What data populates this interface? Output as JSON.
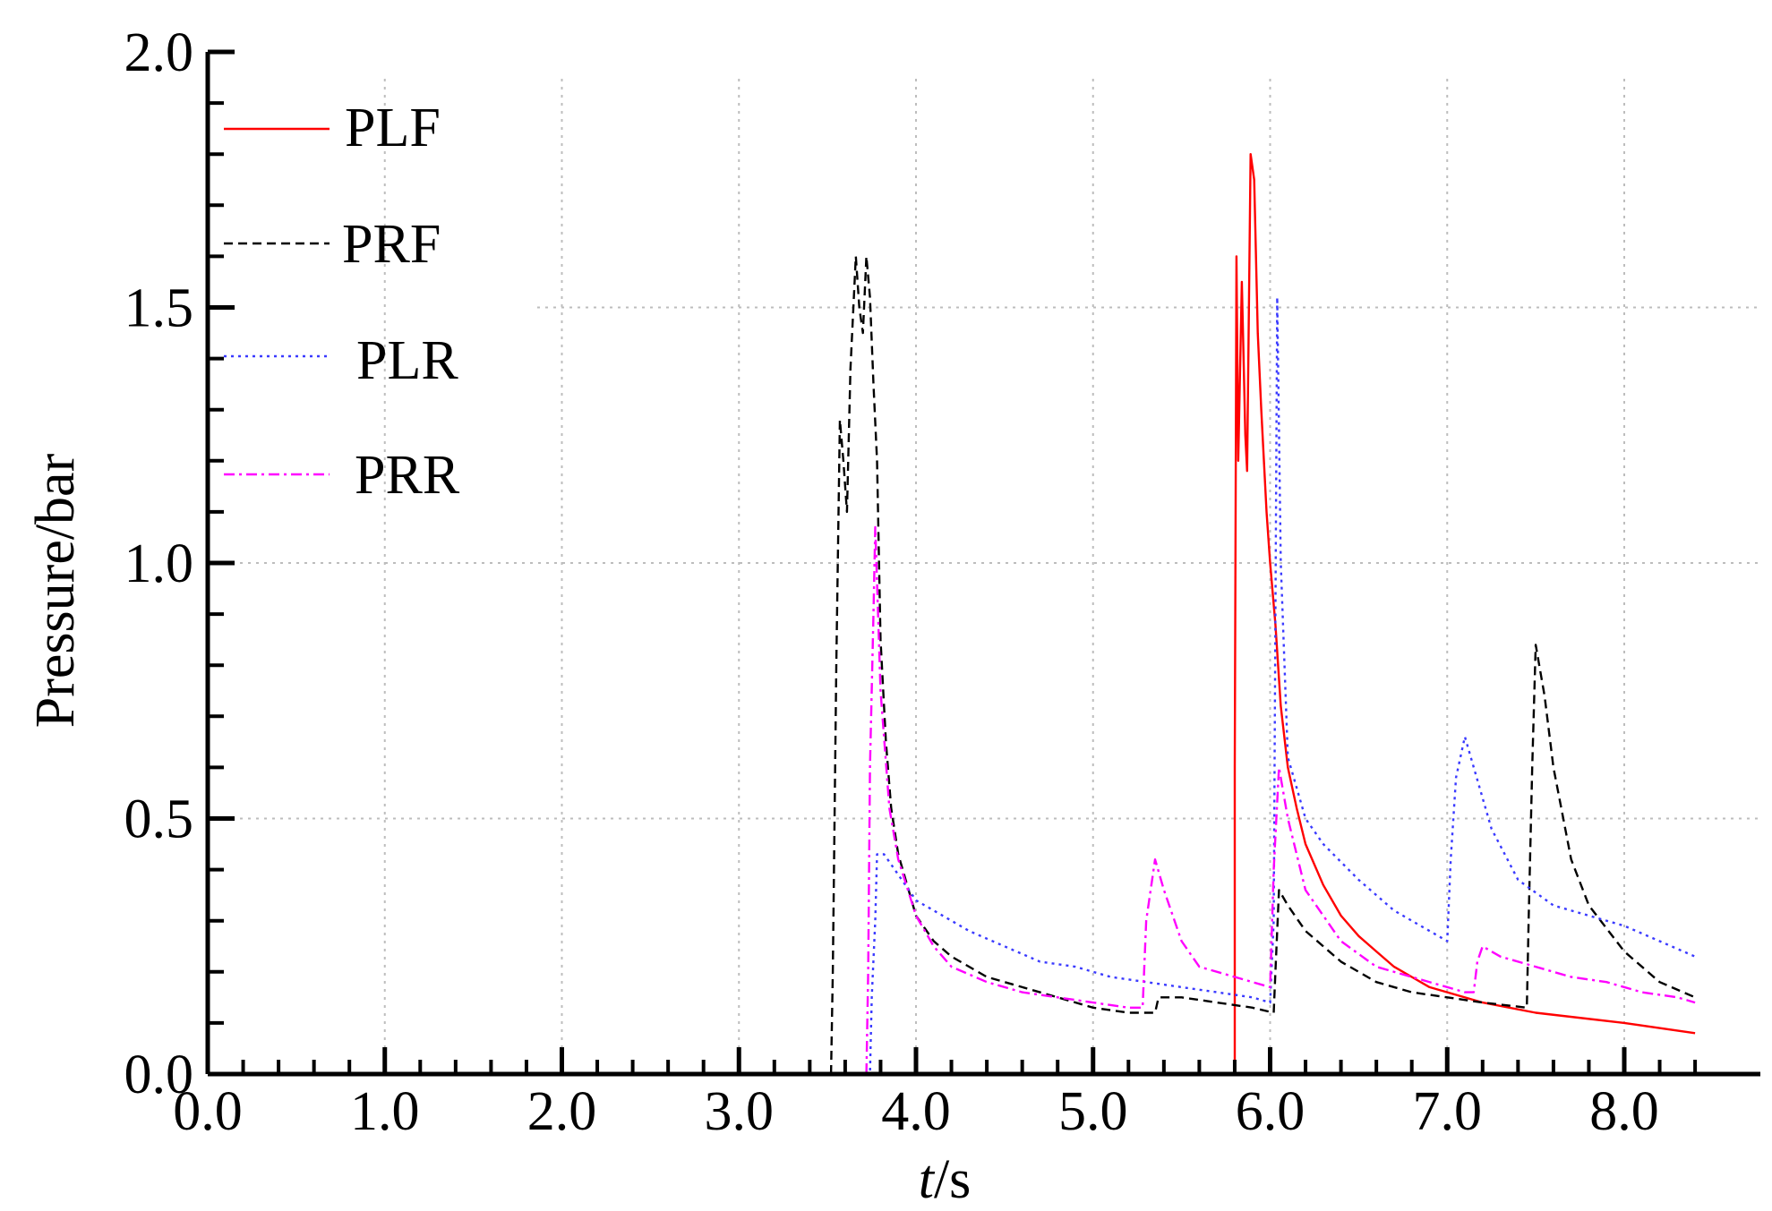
{
  "chart_data": {
    "type": "line",
    "title": "",
    "xlabel_italic": "t",
    "xlabel_unit": "/s",
    "ylabel": "Pressure/bar",
    "xlim": [
      0.0,
      8.4
    ],
    "ylim": [
      0.0,
      2.0
    ],
    "xticks": [
      0.0,
      1.0,
      2.0,
      3.0,
      4.0,
      5.0,
      6.0,
      7.0,
      8.0
    ],
    "xtick_labels": [
      "0.0",
      "1.0",
      "2.0",
      "3.0",
      "4.0",
      "5.0",
      "6.0",
      "7.0",
      "8.0"
    ],
    "yticks": [
      0.0,
      0.5,
      1.0,
      1.5,
      2.0
    ],
    "ytick_labels": [
      "0.0",
      "0.5",
      "1.0",
      "1.5",
      "2.0"
    ],
    "grid": true,
    "legend_position": "top-left",
    "series": [
      {
        "name": "PLF",
        "color": "#ff0000",
        "dash": "solid",
        "points": [
          [
            5.8,
            0.0
          ],
          [
            5.8,
            0.6
          ],
          [
            5.81,
            1.6
          ],
          [
            5.82,
            1.2
          ],
          [
            5.84,
            1.55
          ],
          [
            5.86,
            1.25
          ],
          [
            5.87,
            1.18
          ],
          [
            5.89,
            1.8
          ],
          [
            5.91,
            1.75
          ],
          [
            5.93,
            1.45
          ],
          [
            5.95,
            1.3
          ],
          [
            5.98,
            1.1
          ],
          [
            6.0,
            1.0
          ],
          [
            6.03,
            0.88
          ],
          [
            6.06,
            0.72
          ],
          [
            6.1,
            0.6
          ],
          [
            6.15,
            0.52
          ],
          [
            6.2,
            0.45
          ],
          [
            6.3,
            0.37
          ],
          [
            6.4,
            0.31
          ],
          [
            6.5,
            0.27
          ],
          [
            6.6,
            0.24
          ],
          [
            6.7,
            0.21
          ],
          [
            6.8,
            0.19
          ],
          [
            6.9,
            0.17
          ],
          [
            7.0,
            0.16
          ],
          [
            7.2,
            0.14
          ],
          [
            7.5,
            0.12
          ],
          [
            8.0,
            0.1
          ],
          [
            8.4,
            0.08
          ]
        ]
      },
      {
        "name": "PRF",
        "color": "#000000",
        "dash": "dashed",
        "points": [
          [
            3.52,
            0.0
          ],
          [
            3.53,
            0.2
          ],
          [
            3.55,
            0.8
          ],
          [
            3.57,
            1.28
          ],
          [
            3.59,
            1.2
          ],
          [
            3.61,
            1.1
          ],
          [
            3.63,
            1.38
          ],
          [
            3.66,
            1.6
          ],
          [
            3.68,
            1.5
          ],
          [
            3.7,
            1.45
          ],
          [
            3.72,
            1.6
          ],
          [
            3.74,
            1.52
          ],
          [
            3.76,
            1.35
          ],
          [
            3.78,
            1.2
          ],
          [
            3.8,
            0.85
          ],
          [
            3.83,
            0.65
          ],
          [
            3.86,
            0.52
          ],
          [
            3.9,
            0.43
          ],
          [
            4.0,
            0.31
          ],
          [
            4.1,
            0.26
          ],
          [
            4.2,
            0.23
          ],
          [
            4.4,
            0.19
          ],
          [
            4.6,
            0.17
          ],
          [
            4.8,
            0.15
          ],
          [
            5.0,
            0.13
          ],
          [
            5.2,
            0.12
          ],
          [
            5.35,
            0.12
          ],
          [
            5.37,
            0.15
          ],
          [
            5.5,
            0.15
          ],
          [
            5.7,
            0.14
          ],
          [
            5.9,
            0.13
          ],
          [
            6.02,
            0.12
          ],
          [
            6.03,
            0.2
          ],
          [
            6.05,
            0.36
          ],
          [
            6.1,
            0.33
          ],
          [
            6.2,
            0.28
          ],
          [
            6.4,
            0.22
          ],
          [
            6.6,
            0.18
          ],
          [
            6.8,
            0.16
          ],
          [
            7.0,
            0.15
          ],
          [
            7.2,
            0.14
          ],
          [
            7.45,
            0.13
          ],
          [
            7.46,
            0.3
          ],
          [
            7.48,
            0.6
          ],
          [
            7.5,
            0.84
          ],
          [
            7.55,
            0.74
          ],
          [
            7.6,
            0.6
          ],
          [
            7.7,
            0.42
          ],
          [
            7.8,
            0.33
          ],
          [
            8.0,
            0.24
          ],
          [
            8.2,
            0.18
          ],
          [
            8.4,
            0.15
          ]
        ]
      },
      {
        "name": "PLR",
        "color": "#3a3aff",
        "dash": "dotted",
        "points": [
          [
            3.72,
            0.0
          ],
          [
            3.74,
            0.0
          ],
          [
            3.75,
            0.15
          ],
          [
            3.77,
            0.3
          ],
          [
            3.78,
            0.43
          ],
          [
            3.82,
            0.43
          ],
          [
            3.9,
            0.39
          ],
          [
            4.0,
            0.34
          ],
          [
            4.1,
            0.32
          ],
          [
            4.3,
            0.28
          ],
          [
            4.5,
            0.25
          ],
          [
            4.7,
            0.22
          ],
          [
            4.9,
            0.21
          ],
          [
            5.1,
            0.19
          ],
          [
            5.3,
            0.18
          ],
          [
            5.5,
            0.17
          ],
          [
            5.7,
            0.16
          ],
          [
            5.9,
            0.15
          ],
          [
            6.0,
            0.14
          ],
          [
            6.02,
            0.3
          ],
          [
            6.04,
            1.52
          ],
          [
            6.06,
            1.0
          ],
          [
            6.1,
            0.62
          ],
          [
            6.2,
            0.5
          ],
          [
            6.3,
            0.45
          ],
          [
            6.5,
            0.38
          ],
          [
            6.7,
            0.32
          ],
          [
            6.9,
            0.28
          ],
          [
            7.0,
            0.26
          ],
          [
            7.02,
            0.42
          ],
          [
            7.05,
            0.58
          ],
          [
            7.1,
            0.66
          ],
          [
            7.15,
            0.6
          ],
          [
            7.25,
            0.48
          ],
          [
            7.4,
            0.38
          ],
          [
            7.6,
            0.33
          ],
          [
            7.8,
            0.31
          ],
          [
            8.0,
            0.29
          ],
          [
            8.2,
            0.26
          ],
          [
            8.4,
            0.23
          ]
        ]
      },
      {
        "name": "PRR",
        "color": "#ff00ff",
        "dash": "dashdot",
        "points": [
          [
            3.72,
            0.0
          ],
          [
            3.73,
            0.2
          ],
          [
            3.74,
            0.6
          ],
          [
            3.76,
            0.9
          ],
          [
            3.77,
            1.07
          ],
          [
            3.8,
            0.75
          ],
          [
            3.85,
            0.52
          ],
          [
            3.9,
            0.42
          ],
          [
            4.0,
            0.31
          ],
          [
            4.1,
            0.25
          ],
          [
            4.2,
            0.21
          ],
          [
            4.4,
            0.18
          ],
          [
            4.6,
            0.16
          ],
          [
            4.8,
            0.15
          ],
          [
            5.0,
            0.14
          ],
          [
            5.2,
            0.13
          ],
          [
            5.28,
            0.13
          ],
          [
            5.3,
            0.3
          ],
          [
            5.35,
            0.42
          ],
          [
            5.4,
            0.36
          ],
          [
            5.5,
            0.26
          ],
          [
            5.6,
            0.21
          ],
          [
            5.8,
            0.19
          ],
          [
            6.0,
            0.17
          ],
          [
            6.02,
            0.4
          ],
          [
            6.05,
            0.6
          ],
          [
            6.1,
            0.5
          ],
          [
            6.2,
            0.36
          ],
          [
            6.4,
            0.26
          ],
          [
            6.6,
            0.21
          ],
          [
            6.8,
            0.19
          ],
          [
            7.0,
            0.17
          ],
          [
            7.1,
            0.16
          ],
          [
            7.15,
            0.16
          ],
          [
            7.17,
            0.22
          ],
          [
            7.2,
            0.25
          ],
          [
            7.3,
            0.23
          ],
          [
            7.5,
            0.21
          ],
          [
            7.7,
            0.19
          ],
          [
            7.9,
            0.18
          ],
          [
            8.1,
            0.16
          ],
          [
            8.3,
            0.15
          ],
          [
            8.4,
            0.14
          ]
        ]
      }
    ]
  }
}
